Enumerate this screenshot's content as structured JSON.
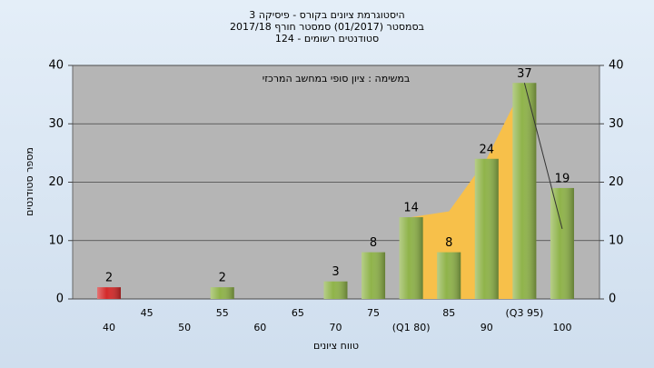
{
  "chart_data": {
    "type": "bar",
    "title": [
      "היסטוגרמת ציונים בקורס - פיסיקה 3",
      "בסמסטר  (01/2017)  סמסטר חורף 2017/18",
      "סטודנטים רשומים - 124"
    ],
    "annotation": "במשימה : ציון סופי במחשב המרכזי",
    "ylabel": "מספר סטודנטים",
    "xlabel": "טווח ציונים",
    "categories": [
      "40",
      "45",
      "50",
      "55",
      "60",
      "65",
      "70",
      "75",
      "(Q1 80)",
      "85",
      "90",
      "(Q3 95)",
      "100"
    ],
    "values": [
      2,
      0,
      0,
      2,
      0,
      0,
      3,
      8,
      14,
      8,
      24,
      37,
      19
    ],
    "colors": [
      "#d42a2a",
      "#8fb34a",
      "#8fb34a",
      "#8fb34a",
      "#8fb34a",
      "#8fb34a",
      "#8fb34a",
      "#8fb34a",
      "#8fb34a",
      "#8fb34a",
      "#8fb34a",
      "#8fb34a",
      "#8fb34a"
    ],
    "area_values": [
      null,
      null,
      null,
      null,
      null,
      null,
      null,
      null,
      14,
      15,
      24,
      37,
      null
    ],
    "area_color": "#f7c04a",
    "line_values": [
      null,
      null,
      null,
      null,
      null,
      null,
      null,
      null,
      null,
      null,
      null,
      37,
      12
    ],
    "ylim": [
      0,
      40
    ],
    "yticks": [
      0,
      10,
      20,
      30,
      40
    ],
    "y2lim": [
      0,
      40
    ],
    "y2ticks": [
      0,
      10,
      20,
      30,
      40
    ],
    "grid": true
  }
}
